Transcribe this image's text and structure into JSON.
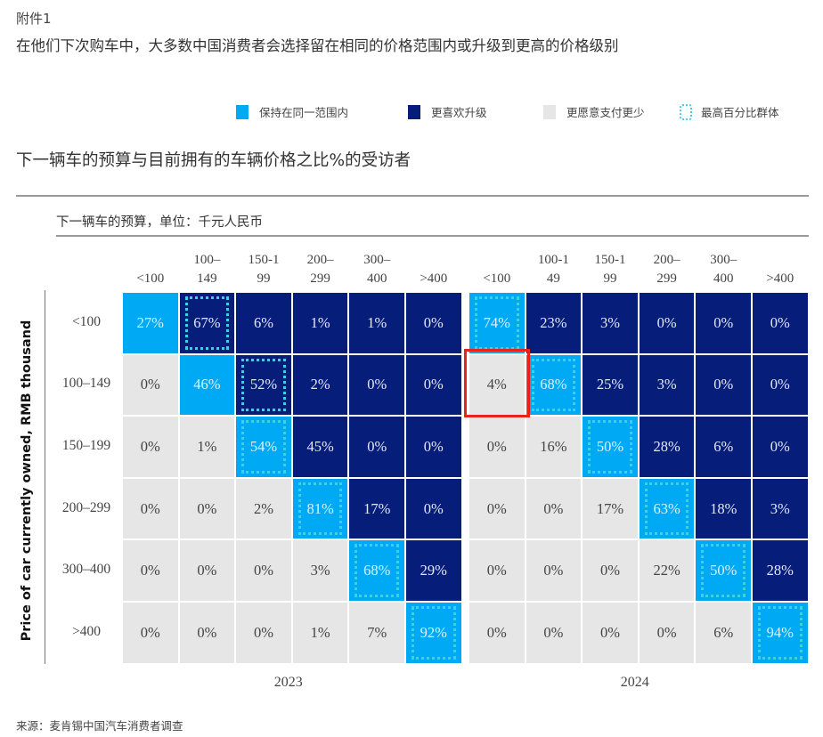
{
  "exhibit": "附件1",
  "headline": "在他们下次购车中，大多数中国消费者会选择留在相同的价格范围内或升级到更高的价格级别",
  "legend": [
    {
      "label": "保持在同一范围内",
      "color": "#00a9f4"
    },
    {
      "label": "更喜欢升级",
      "color": "#061d7a"
    },
    {
      "label": "更愿意支付更少",
      "color": "#e6e6e6"
    },
    {
      "label": "最高百分比群体",
      "color": "#3fd1e3",
      "style": "dotted"
    }
  ],
  "subtitle": "下一辆车的预算与目前拥有的车辆价格之比%的受访者",
  "source": "来源：麦肯锡中国汽车消费者调查",
  "chart_data": {
    "type": "heatmap",
    "title": "下一辆车的预算与目前拥有的车辆价格之比%的受访者",
    "xlabel": "下一辆车的预算，单位：千元人民币",
    "ylabel": "Price of car currently owned, RMB thousand",
    "rows": [
      "<100",
      "100–149",
      "150–199",
      "200–299",
      "300–400",
      ">400"
    ],
    "colors": {
      "same": "#00a9f4",
      "upgrade": "#061d7a",
      "downgrade": "#e6e6e6",
      "highest": "#3fd1e3",
      "highlight_box": "#e8231b"
    },
    "panels": [
      {
        "year": "2023",
        "columns": [
          "<100",
          "100–\n149",
          "150-1\n99",
          "200–\n299",
          "300–\n400",
          ">400"
        ],
        "values": [
          [
            27,
            67,
            6,
            1,
            1,
            0
          ],
          [
            0,
            46,
            52,
            2,
            0,
            0
          ],
          [
            0,
            1,
            54,
            45,
            0,
            0
          ],
          [
            0,
            0,
            2,
            81,
            17,
            0
          ],
          [
            0,
            0,
            0,
            3,
            68,
            29
          ],
          [
            0,
            0,
            0,
            1,
            7,
            92
          ]
        ],
        "highest": [
          1,
          2,
          2,
          3,
          4,
          5
        ]
      },
      {
        "year": "2024",
        "columns": [
          "<100",
          "100-1\n49",
          "150-1\n99",
          "200–\n299",
          "300–\n400",
          ">400"
        ],
        "values": [
          [
            74,
            23,
            3,
            0,
            0,
            0
          ],
          [
            4,
            68,
            25,
            3,
            0,
            0
          ],
          [
            0,
            16,
            50,
            28,
            6,
            0
          ],
          [
            0,
            0,
            17,
            63,
            18,
            3
          ],
          [
            0,
            0,
            0,
            22,
            50,
            28
          ],
          [
            0,
            0,
            0,
            0,
            6,
            94
          ]
        ],
        "highest": [
          0,
          1,
          2,
          3,
          4,
          5
        ],
        "highlighted_cell": {
          "row": "100–149",
          "column": "<100",
          "value": 4
        }
      }
    ]
  }
}
